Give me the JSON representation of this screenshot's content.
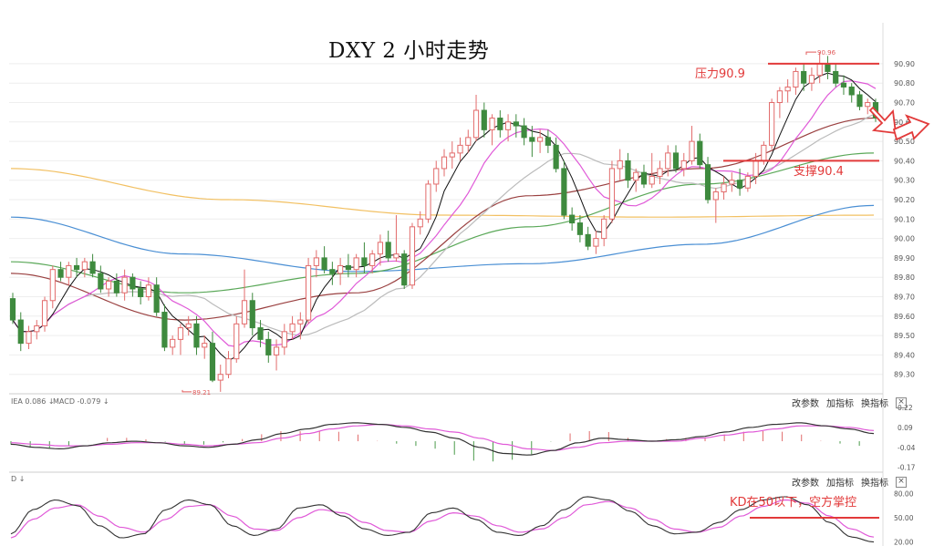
{
  "title": "DXY 2 小时走势",
  "annotations": {
    "resistance": "压力90.9",
    "support": "支撑90.4",
    "kd_note": "KD在50以下，空方掌控"
  },
  "price_marks": {
    "high": "90.96",
    "low": "89.21"
  },
  "macd_panel": {
    "label_dif": "IEA 0.086 ↓",
    "label_macd": "MACD -0.079 ↓",
    "tools": [
      "改参数",
      "加指标",
      "换指标"
    ],
    "close": "×"
  },
  "kd_panel": {
    "label": "D ↓",
    "tools": [
      "改参数",
      "加指标",
      "换指标"
    ],
    "close": "×"
  },
  "colors": {
    "up": "#e26b6b",
    "down": "#3e8a3e",
    "fast": "#111111",
    "ma_pink": "#e05ad8",
    "ma_gray": "#bbbbbb",
    "ma_brown": "#9a4040",
    "ma_green": "#5aa858",
    "ma_blue": "#4a8fd4",
    "ma_orange": "#f2c062",
    "annotation": "#e23a3a"
  },
  "chart_data": [
    {
      "type": "candlestick",
      "ylim": [
        89.2,
        90.97
      ],
      "yticks": [
        "90.90",
        "90.80",
        "90.70",
        "90.60",
        "90.50",
        "90.40",
        "90.30",
        "90.20",
        "90.10",
        "90.00",
        "89.90",
        "89.80",
        "89.70",
        "89.60",
        "89.50",
        "89.40",
        "89.30"
      ],
      "candles": [
        [
          89.69,
          89.72,
          89.56,
          89.58
        ],
        [
          89.58,
          89.62,
          89.42,
          89.46
        ],
        [
          89.46,
          89.55,
          89.43,
          89.52
        ],
        [
          89.52,
          89.58,
          89.48,
          89.55
        ],
        [
          89.55,
          89.7,
          89.52,
          89.68
        ],
        [
          89.68,
          89.86,
          89.64,
          89.84
        ],
        [
          89.84,
          89.88,
          89.78,
          89.8
        ],
        [
          89.8,
          89.88,
          89.76,
          89.86
        ],
        [
          89.86,
          89.9,
          89.8,
          89.84
        ],
        [
          89.84,
          89.9,
          89.8,
          89.88
        ],
        [
          89.88,
          89.92,
          89.8,
          89.82
        ],
        [
          89.82,
          89.86,
          89.72,
          89.74
        ],
        [
          89.74,
          89.8,
          89.7,
          89.78
        ],
        [
          89.78,
          89.82,
          89.7,
          89.72
        ],
        [
          89.72,
          89.84,
          89.68,
          89.8
        ],
        [
          89.8,
          89.82,
          89.7,
          89.74
        ],
        [
          89.74,
          89.78,
          89.66,
          89.7
        ],
        [
          89.7,
          89.8,
          89.68,
          89.76
        ],
        [
          89.76,
          89.8,
          89.6,
          89.62
        ],
        [
          89.62,
          89.66,
          89.42,
          89.44
        ],
        [
          89.44,
          89.5,
          89.4,
          89.48
        ],
        [
          89.48,
          89.56,
          89.4,
          89.54
        ],
        [
          89.54,
          89.6,
          89.5,
          89.56
        ],
        [
          89.56,
          89.6,
          89.4,
          89.44
        ],
        [
          89.44,
          89.5,
          89.38,
          89.46
        ],
        [
          89.46,
          89.52,
          89.26,
          89.27
        ],
        [
          89.27,
          89.35,
          89.21,
          89.3
        ],
        [
          89.3,
          89.42,
          89.28,
          89.38
        ],
        [
          89.38,
          89.6,
          89.36,
          89.56
        ],
        [
          89.56,
          89.84,
          89.54,
          89.68
        ],
        [
          89.68,
          89.72,
          89.5,
          89.54
        ],
        [
          89.54,
          89.58,
          89.44,
          89.48
        ],
        [
          89.48,
          89.52,
          89.36,
          89.4
        ],
        [
          89.4,
          89.48,
          89.32,
          89.44
        ],
        [
          89.44,
          89.56,
          89.4,
          89.52
        ],
        [
          89.52,
          89.6,
          89.48,
          89.56
        ],
        [
          89.56,
          89.62,
          89.48,
          89.58
        ],
        [
          89.58,
          89.9,
          89.56,
          89.86
        ],
        [
          89.86,
          89.94,
          89.8,
          89.9
        ],
        [
          89.9,
          89.96,
          89.82,
          89.84
        ],
        [
          89.84,
          89.88,
          89.76,
          89.82
        ],
        [
          89.82,
          89.9,
          89.76,
          89.86
        ],
        [
          89.86,
          89.92,
          89.8,
          89.84
        ],
        [
          89.84,
          89.92,
          89.8,
          89.9
        ],
        [
          89.9,
          89.98,
          89.82,
          89.86
        ],
        [
          89.86,
          89.94,
          89.82,
          89.92
        ],
        [
          89.92,
          90.02,
          89.86,
          89.98
        ],
        [
          89.98,
          90.04,
          89.88,
          89.9
        ],
        [
          89.9,
          90.12,
          89.88,
          89.92
        ],
        [
          89.92,
          89.94,
          89.74,
          89.76
        ],
        [
          89.76,
          90.08,
          89.74,
          90.06
        ],
        [
          90.06,
          90.14,
          90.02,
          90.1
        ],
        [
          90.1,
          90.3,
          90.08,
          90.28
        ],
        [
          90.28,
          90.4,
          90.24,
          90.36
        ],
        [
          90.36,
          90.46,
          90.32,
          90.42
        ],
        [
          90.42,
          90.5,
          90.36,
          90.44
        ],
        [
          90.44,
          90.52,
          90.4,
          90.48
        ],
        [
          90.48,
          90.56,
          90.44,
          90.52
        ],
        [
          90.52,
          90.74,
          90.5,
          90.66
        ],
        [
          90.66,
          90.7,
          90.52,
          90.56
        ],
        [
          90.56,
          90.64,
          90.48,
          90.62
        ],
        [
          90.62,
          90.66,
          90.52,
          90.56
        ],
        [
          90.56,
          90.64,
          90.5,
          90.6
        ],
        [
          90.6,
          90.64,
          90.52,
          90.58
        ],
        [
          90.58,
          90.62,
          90.48,
          90.52
        ],
        [
          90.52,
          90.58,
          90.42,
          90.5
        ],
        [
          90.5,
          90.56,
          90.44,
          90.52
        ],
        [
          90.52,
          90.56,
          90.44,
          90.48
        ],
        [
          90.48,
          90.52,
          90.34,
          90.36
        ],
        [
          90.36,
          90.4,
          90.1,
          90.12
        ],
        [
          90.12,
          90.16,
          90.04,
          90.08
        ],
        [
          90.08,
          90.12,
          89.98,
          90.02
        ],
        [
          90.02,
          90.06,
          89.94,
          89.96
        ],
        [
          89.96,
          90.04,
          89.92,
          90.0
        ],
        [
          90.0,
          90.12,
          89.96,
          90.1
        ],
        [
          90.1,
          90.4,
          90.08,
          90.36
        ],
        [
          90.36,
          90.46,
          90.3,
          90.4
        ],
        [
          90.4,
          90.44,
          90.26,
          90.3
        ],
        [
          90.3,
          90.36,
          90.24,
          90.34
        ],
        [
          90.34,
          90.38,
          90.26,
          90.28
        ],
        [
          90.28,
          90.44,
          90.26,
          90.32
        ],
        [
          90.32,
          90.4,
          90.28,
          90.36
        ],
        [
          90.36,
          90.48,
          90.32,
          90.44
        ],
        [
          90.44,
          90.48,
          90.34,
          90.36
        ],
        [
          90.36,
          90.44,
          90.32,
          90.4
        ],
        [
          90.4,
          90.58,
          90.38,
          90.5
        ],
        [
          90.5,
          90.54,
          90.36,
          90.38
        ],
        [
          90.38,
          90.42,
          90.18,
          90.2
        ],
        [
          90.2,
          90.26,
          90.08,
          90.24
        ],
        [
          90.24,
          90.32,
          90.2,
          90.28
        ],
        [
          90.28,
          90.34,
          90.24,
          90.3
        ],
        [
          90.3,
          90.36,
          90.22,
          90.26
        ],
        [
          90.26,
          90.34,
          90.24,
          90.32
        ],
        [
          90.32,
          90.44,
          90.28,
          90.4
        ],
        [
          90.4,
          90.5,
          90.38,
          90.48
        ],
        [
          90.48,
          90.72,
          90.46,
          90.7
        ],
        [
          90.7,
          90.78,
          90.62,
          90.76
        ],
        [
          90.76,
          90.82,
          90.7,
          90.78
        ],
        [
          90.78,
          90.88,
          90.74,
          90.86
        ],
        [
          90.86,
          90.9,
          90.76,
          90.8
        ],
        [
          90.8,
          90.88,
          90.76,
          90.84
        ],
        [
          90.84,
          90.96,
          90.8,
          90.9
        ],
        [
          90.9,
          90.94,
          90.82,
          90.86
        ],
        [
          90.86,
          90.9,
          90.78,
          90.8
        ],
        [
          90.8,
          90.84,
          90.74,
          90.78
        ],
        [
          90.78,
          90.8,
          90.7,
          90.74
        ],
        [
          90.74,
          90.76,
          90.66,
          90.68
        ],
        [
          90.68,
          90.72,
          90.64,
          90.7
        ],
        [
          90.7,
          90.72,
          90.6,
          90.62
        ]
      ],
      "moving_averages": [
        {
          "color": "ma_orange",
          "values": [
            90.36,
            90.2,
            90.12,
            90.11,
            90.12
          ]
        },
        {
          "color": "ma_blue",
          "values": [
            90.11,
            89.92,
            89.83,
            89.87,
            89.97,
            90.17
          ]
        },
        {
          "color": "ma_green",
          "values": [
            89.88,
            89.72,
            89.82,
            90.06,
            90.28,
            90.44
          ]
        },
        {
          "color": "ma_brown",
          "values": [
            89.82,
            89.58,
            89.72,
            90.22,
            90.36,
            90.62
          ]
        }
      ]
    },
    {
      "type": "macd",
      "ylim": [
        -0.19,
        0.25
      ],
      "yticks": [
        "0.22",
        "0.09",
        "-0.04",
        "-0.17"
      ],
      "dif": [
        -0.02,
        -0.04,
        -0.05,
        -0.03,
        -0.01,
        0.0,
        -0.01,
        -0.03,
        -0.04,
        -0.02,
        0.01,
        0.05,
        0.08,
        0.11,
        0.12,
        0.11,
        0.09,
        0.06,
        0.02,
        -0.04,
        -0.08,
        -0.09,
        -0.06,
        -0.01,
        0.02,
        0.01,
        0.0,
        0.01,
        0.03,
        0.06,
        0.09,
        0.11,
        0.12,
        0.1,
        0.08,
        0.05
      ],
      "dea": [
        -0.01,
        -0.02,
        -0.03,
        -0.03,
        -0.02,
        -0.01,
        -0.01,
        -0.02,
        -0.03,
        -0.02,
        -0.01,
        0.02,
        0.05,
        0.08,
        0.1,
        0.11,
        0.1,
        0.08,
        0.06,
        0.02,
        -0.02,
        -0.05,
        -0.06,
        -0.04,
        -0.01,
        0.0,
        0.0,
        0.0,
        0.02,
        0.04,
        0.06,
        0.08,
        0.1,
        0.1,
        0.09,
        0.07
      ]
    },
    {
      "type": "kd",
      "ylim": [
        15,
        95
      ],
      "yticks": [
        "80.00",
        "50.00",
        "20.00"
      ],
      "k": [
        30,
        60,
        72,
        65,
        40,
        25,
        30,
        60,
        72,
        66,
        40,
        28,
        36,
        62,
        66,
        52,
        36,
        28,
        32,
        56,
        62,
        48,
        32,
        28,
        40,
        60,
        76,
        72,
        58,
        40,
        30,
        32,
        44,
        60,
        72,
        76,
        66,
        44,
        26,
        20
      ],
      "d": [
        25,
        48,
        62,
        66,
        52,
        38,
        32,
        48,
        64,
        66,
        52,
        36,
        34,
        50,
        60,
        56,
        44,
        34,
        32,
        46,
        56,
        52,
        40,
        32,
        36,
        50,
        66,
        70,
        62,
        48,
        36,
        32,
        38,
        52,
        64,
        72,
        68,
        52,
        36,
        26
      ]
    }
  ]
}
